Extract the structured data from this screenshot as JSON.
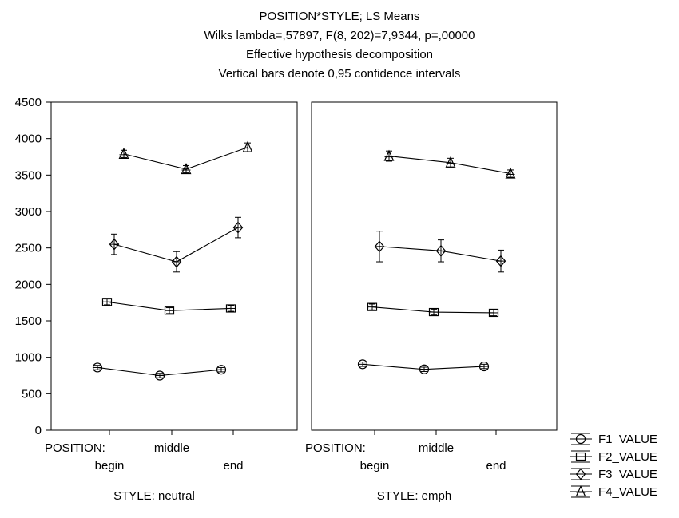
{
  "chart_data": {
    "type": "line",
    "title": [
      "POSITION*STYLE; LS Means",
      "Wilks lambda=,57897, F(8, 202)=7,9344, p=,00000",
      "Effective hypothesis decomposition",
      "Vertical bars denote 0,95 confidence intervals"
    ],
    "ylim": [
      0,
      4500
    ],
    "yticks": [
      0,
      500,
      1000,
      1500,
      2000,
      2500,
      3000,
      3500,
      4000,
      4500
    ],
    "categories": [
      "begin",
      "middle",
      "end"
    ],
    "x_factor_label": "POSITION:",
    "grid": false,
    "legend_position": "bottom-right",
    "panels": [
      {
        "label": "STYLE: neutral",
        "series": [
          {
            "name": "F1_VALUE",
            "marker": "circle",
            "values": [
              860,
              750,
              830
            ],
            "ci": [
              [
                830,
                890
              ],
              [
                720,
                780
              ],
              [
                800,
                860
              ]
            ]
          },
          {
            "name": "F2_VALUE",
            "marker": "square",
            "values": [
              1760,
              1640,
              1670
            ],
            "ci": [
              [
                1720,
                1800
              ],
              [
                1600,
                1680
              ],
              [
                1630,
                1710
              ]
            ]
          },
          {
            "name": "F3_VALUE",
            "marker": "diamond",
            "values": [
              2550,
              2310,
              2780
            ],
            "ci": [
              [
                2410,
                2690
              ],
              [
                2170,
                2450
              ],
              [
                2640,
                2920
              ]
            ]
          },
          {
            "name": "F4_VALUE",
            "marker": "triangle",
            "values": [
              3790,
              3580,
              3880
            ],
            "ci": [
              [
                3740,
                3840
              ],
              [
                3530,
                3630
              ],
              [
                3820,
                3940
              ]
            ]
          }
        ]
      },
      {
        "label": "STYLE: emph",
        "series": [
          {
            "name": "F1_VALUE",
            "marker": "circle",
            "values": [
              905,
              835,
              875
            ],
            "ci": [
              [
                875,
                935
              ],
              [
                805,
                865
              ],
              [
                845,
                905
              ]
            ]
          },
          {
            "name": "F2_VALUE",
            "marker": "square",
            "values": [
              1690,
              1620,
              1610
            ],
            "ci": [
              [
                1650,
                1730
              ],
              [
                1580,
                1660
              ],
              [
                1570,
                1650
              ]
            ]
          },
          {
            "name": "F3_VALUE",
            "marker": "diamond",
            "values": [
              2520,
              2460,
              2320
            ],
            "ci": [
              [
                2310,
                2730
              ],
              [
                2310,
                2610
              ],
              [
                2170,
                2470
              ]
            ]
          },
          {
            "name": "F4_VALUE",
            "marker": "triangle",
            "values": [
              3760,
              3670,
              3520
            ],
            "ci": [
              [
                3690,
                3830
              ],
              [
                3610,
                3730
              ],
              [
                3470,
                3570
              ]
            ]
          }
        ]
      }
    ]
  }
}
